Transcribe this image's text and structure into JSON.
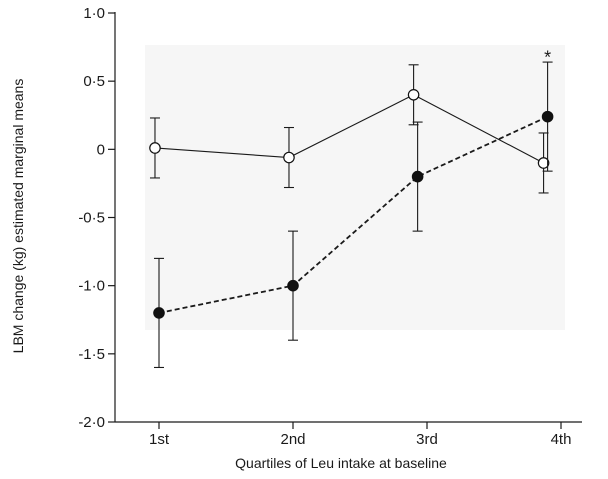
{
  "chart_data": {
    "type": "line",
    "xlabel": "Quartiles of Leu intake at baseline",
    "ylabel": "LBM change (kg) estimated marginal means",
    "categories": [
      "1st",
      "2nd",
      "3rd",
      "4th"
    ],
    "ylim": [
      -2.0,
      1.0
    ],
    "yticks": [
      "1·0",
      "0·5",
      "0",
      "-0·5",
      "-1·0",
      "-1·5",
      "-2·0"
    ],
    "ytick_values": [
      1.0,
      0.5,
      0,
      -0.5,
      -1.0,
      -1.5,
      -2.0
    ],
    "grid": false,
    "series": [
      {
        "marker": "open-circle",
        "line_style": "solid",
        "x": [
          0.97,
          1.97,
          2.9,
          3.87
        ],
        "values": [
          0.01,
          -0.06,
          0.4,
          -0.1
        ],
        "ci_low": [
          -0.21,
          -0.28,
          0.18,
          -0.32
        ],
        "ci_high": [
          0.23,
          0.16,
          0.62,
          0.12
        ]
      },
      {
        "marker": "filled-circle",
        "line_style": "dashed",
        "x": [
          1.0,
          2.0,
          2.93,
          3.9
        ],
        "values": [
          -1.2,
          -1.0,
          -0.2,
          0.24
        ],
        "ci_low": [
          -1.6,
          -1.4,
          -0.6,
          -0.16
        ],
        "ci_high": [
          -0.8,
          -0.6,
          0.2,
          0.64
        ]
      }
    ],
    "annotations": [
      {
        "text": "*",
        "x": 3.9,
        "y": 0.69
      }
    ]
  }
}
